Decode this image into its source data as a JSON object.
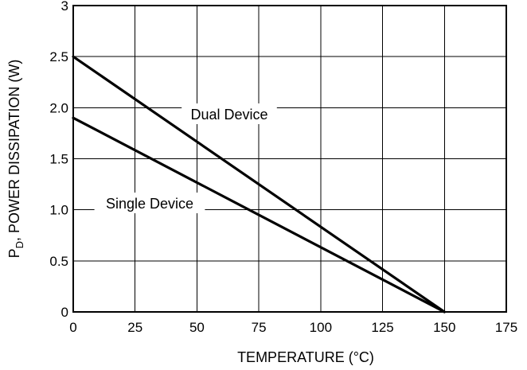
{
  "chart_data": {
    "type": "line",
    "xlabel": "TEMPERATURE (°C)",
    "ylabel": "P",
    "ylabel_subscript": "D",
    "ylabel_rest": ", POWER DISSIPATION (W)",
    "xlim": [
      0,
      175
    ],
    "ylim": [
      0,
      3
    ],
    "xticks": [
      0,
      25,
      50,
      75,
      100,
      125,
      150,
      175
    ],
    "xtick_labels": [
      "0",
      "25",
      "50",
      "75",
      "100",
      "125",
      "150",
      "175"
    ],
    "yticks": [
      0,
      0.5,
      1.0,
      1.5,
      2.0,
      2.5,
      3
    ],
    "ytick_labels": [
      "0",
      "0.5",
      "1.0",
      "1.5",
      "2.0",
      "2.5",
      "3"
    ],
    "grid": true,
    "series": [
      {
        "name": "Dual Device",
        "x": [
          0,
          150
        ],
        "y": [
          2.5,
          0
        ]
      },
      {
        "name": "Single Device",
        "x": [
          0,
          150
        ],
        "y": [
          1.9,
          0
        ]
      }
    ],
    "annotations": [
      {
        "text": "Dual Device",
        "series": 0
      },
      {
        "text": "Single Device",
        "series": 1
      }
    ]
  }
}
